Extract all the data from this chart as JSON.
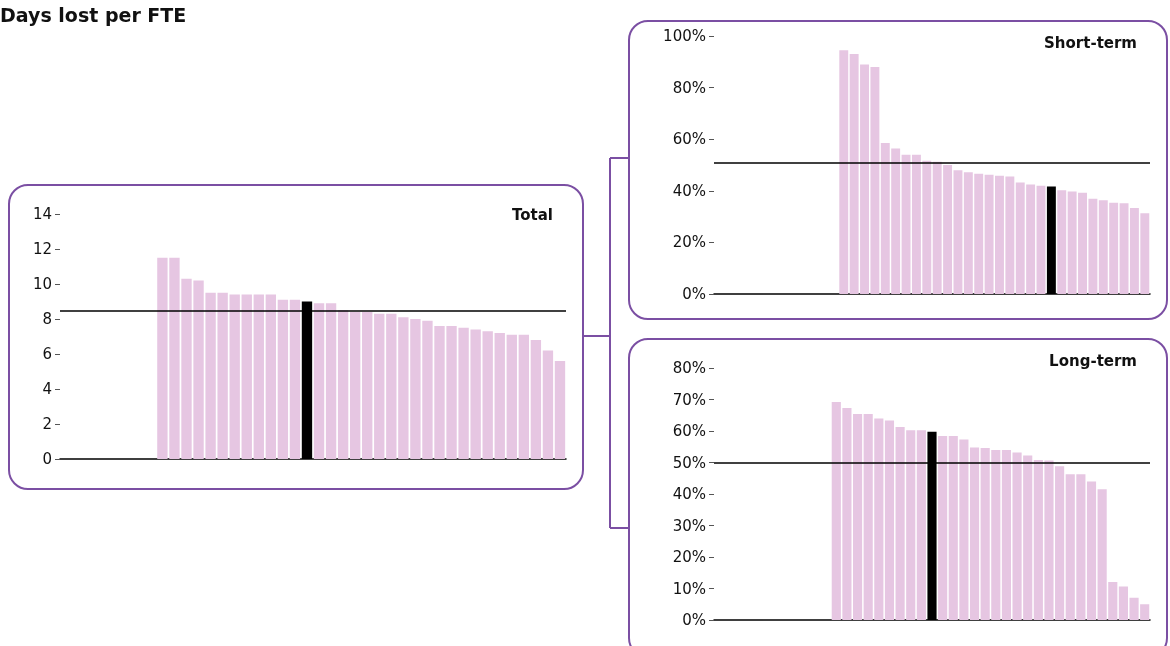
{
  "chart_data": [
    {
      "type": "bar",
      "title": "Total",
      "annotations": [
        "Days lost per FTE"
      ],
      "categories": [
        null,
        null,
        null,
        null,
        null,
        null,
        null,
        null,
        null,
        null,
        null,
        null,
        null,
        null,
        null,
        null,
        null,
        null,
        null,
        null,
        null,
        null,
        null,
        null,
        null,
        null,
        null,
        null,
        null,
        null,
        null,
        null,
        null,
        null,
        null,
        null,
        null,
        null,
        null,
        null,
        null,
        null
      ],
      "values": [
        null,
        null,
        null,
        null,
        null,
        null,
        null,
        null,
        11.5,
        11.5,
        10.3,
        10.2,
        9.5,
        9.5,
        9.4,
        9.4,
        9.4,
        9.4,
        9.1,
        9.1,
        9.0,
        8.9,
        8.9,
        8.5,
        8.4,
        8.4,
        8.3,
        8.3,
        8.1,
        8.0,
        7.9,
        7.6,
        7.6,
        7.5,
        7.4,
        7.3,
        7.2,
        7.1,
        7.1,
        6.8,
        6.2,
        5.6
      ],
      "colors": [
        "#e6c6e2",
        "#e6c6e2",
        "#e6c6e2",
        "#e6c6e2",
        "#e6c6e2",
        "#e6c6e2",
        "#e6c6e2",
        "#e6c6e2",
        "#e6c6e2",
        "#e6c6e2",
        "#e6c6e2",
        "#e6c6e2",
        "#e6c6e2",
        "#e6c6e2",
        "#e6c6e2",
        "#e6c6e2",
        "#e6c6e2",
        "#e6c6e2",
        "#e6c6e2",
        "#e6c6e2",
        "#000000",
        "#e6c6e2",
        "#e6c6e2",
        "#e6c6e2",
        "#e6c6e2",
        "#e6c6e2",
        "#e6c6e2",
        "#e6c6e2",
        "#e6c6e2",
        "#e6c6e2",
        "#e6c6e2",
        "#e6c6e2",
        "#e6c6e2",
        "#e6c6e2",
        "#e6c6e2",
        "#e6c6e2",
        "#e6c6e2",
        "#e6c6e2",
        "#e6c6e2",
        "#e6c6e2",
        "#e6c6e2",
        "#e6c6e2"
      ],
      "ylim": [
        0,
        14
      ],
      "yticks": [
        0,
        2,
        4,
        6,
        8,
        10,
        12,
        14
      ],
      "tick_labels": "y",
      "grid": false,
      "ref_lines": [
        {
          "axis": "y",
          "value": 8.5,
          "color": "#000000"
        }
      ]
    },
    {
      "type": "bar",
      "title": "Short-term",
      "categories": [
        null,
        null,
        null,
        null,
        null,
        null,
        null,
        null,
        null,
        null,
        null,
        null,
        null,
        null,
        null,
        null,
        null,
        null,
        null,
        null,
        null,
        null,
        null,
        null,
        null,
        null,
        null,
        null,
        null,
        null,
        null,
        null,
        null,
        null,
        null,
        null,
        null,
        null,
        null,
        null,
        null,
        null
      ],
      "values": [
        null,
        null,
        null,
        null,
        null,
        null,
        null,
        null,
        null,
        null,
        null,
        null,
        94.5,
        93,
        89,
        88,
        58.5,
        56.4,
        54,
        54,
        51.6,
        51.3,
        50,
        48,
        47.2,
        46.6,
        46.2,
        45.8,
        45.5,
        43.2,
        42.4,
        42,
        41.7,
        40.2,
        39.7,
        39.2,
        36.9,
        36.3,
        35.4,
        35.2,
        33.3,
        31.3
      ],
      "colors": [
        "#e6c6e2",
        "#e6c6e2",
        "#e6c6e2",
        "#e6c6e2",
        "#e6c6e2",
        "#e6c6e2",
        "#e6c6e2",
        "#e6c6e2",
        "#e6c6e2",
        "#e6c6e2",
        "#e6c6e2",
        "#e6c6e2",
        "#e6c6e2",
        "#e6c6e2",
        "#e6c6e2",
        "#e6c6e2",
        "#e6c6e2",
        "#e6c6e2",
        "#e6c6e2",
        "#e6c6e2",
        "#e6c6e2",
        "#e6c6e2",
        "#e6c6e2",
        "#e6c6e2",
        "#e6c6e2",
        "#e6c6e2",
        "#e6c6e2",
        "#e6c6e2",
        "#e6c6e2",
        "#e6c6e2",
        "#e6c6e2",
        "#e6c6e2",
        "#000000",
        "#e6c6e2",
        "#e6c6e2",
        "#e6c6e2",
        "#e6c6e2",
        "#e6c6e2",
        "#e6c6e2",
        "#e6c6e2",
        "#e6c6e2",
        "#e6c6e2"
      ],
      "ylim": [
        0,
        100
      ],
      "yticks": [
        {
          "value": 0,
          "label": "0%"
        },
        {
          "value": 20,
          "label": "20%"
        },
        {
          "value": 40,
          "label": "40%"
        },
        {
          "value": 60,
          "label": "60%"
        },
        {
          "value": 80,
          "label": "80%"
        },
        {
          "value": 100,
          "label": "100%"
        }
      ],
      "tick_labels": "y",
      "grid": false,
      "ref_lines": [
        {
          "axis": "y",
          "value": 51,
          "color": "#000000"
        }
      ]
    },
    {
      "type": "bar",
      "title": "Long-term",
      "categories": [
        null,
        null,
        null,
        null,
        null,
        null,
        null,
        null,
        null,
        null,
        null,
        null,
        null,
        null,
        null,
        null,
        null,
        null,
        null,
        null,
        null,
        null,
        null,
        null,
        null,
        null,
        null,
        null,
        null,
        null,
        null,
        null,
        null,
        null,
        null,
        null,
        null,
        null,
        null,
        null,
        null
      ],
      "values": [
        null,
        null,
        null,
        null,
        null,
        null,
        null,
        null,
        null,
        null,
        null,
        69.2,
        67.3,
        65.4,
        65.4,
        64,
        63.3,
        61.3,
        60.2,
        60.2,
        59.8,
        58.4,
        58.4,
        57.3,
        54.8,
        54.6,
        54,
        54,
        53.2,
        52.2,
        50.8,
        50.6,
        48.8,
        46.3,
        46.3,
        44,
        41.5,
        12.1,
        10.6,
        7.1,
        5
      ],
      "colors": [
        "#e6c6e2",
        "#e6c6e2",
        "#e6c6e2",
        "#e6c6e2",
        "#e6c6e2",
        "#e6c6e2",
        "#e6c6e2",
        "#e6c6e2",
        "#e6c6e2",
        "#e6c6e2",
        "#e6c6e2",
        "#e6c6e2",
        "#e6c6e2",
        "#e6c6e2",
        "#e6c6e2",
        "#e6c6e2",
        "#e6c6e2",
        "#e6c6e2",
        "#e6c6e2",
        "#e6c6e2",
        "#000000",
        "#e6c6e2",
        "#e6c6e2",
        "#e6c6e2",
        "#e6c6e2",
        "#e6c6e2",
        "#e6c6e2",
        "#e6c6e2",
        "#e6c6e2",
        "#e6c6e2",
        "#e6c6e2",
        "#e6c6e2",
        "#e6c6e2",
        "#e6c6e2",
        "#e6c6e2",
        "#e6c6e2",
        "#e6c6e2",
        "#e6c6e2",
        "#e6c6e2",
        "#e6c6e2",
        "#e6c6e2"
      ],
      "ylim": [
        0,
        80
      ],
      "yticks": [
        {
          "value": 0,
          "label": "0%"
        },
        {
          "value": 10,
          "label": "10%"
        },
        {
          "value": 20,
          "label": "20%"
        },
        {
          "value": 30,
          "label": "30%"
        },
        {
          "value": 40,
          "label": "40%"
        },
        {
          "value": 50,
          "label": "50%"
        },
        {
          "value": 60,
          "label": "60%"
        },
        {
          "value": 70,
          "label": "70%"
        },
        {
          "value": 80,
          "label": "80%"
        }
      ],
      "tick_labels": "y",
      "grid": false,
      "ref_lines": [
        {
          "axis": "y",
          "value": 50,
          "color": "#000000"
        }
      ]
    }
  ]
}
